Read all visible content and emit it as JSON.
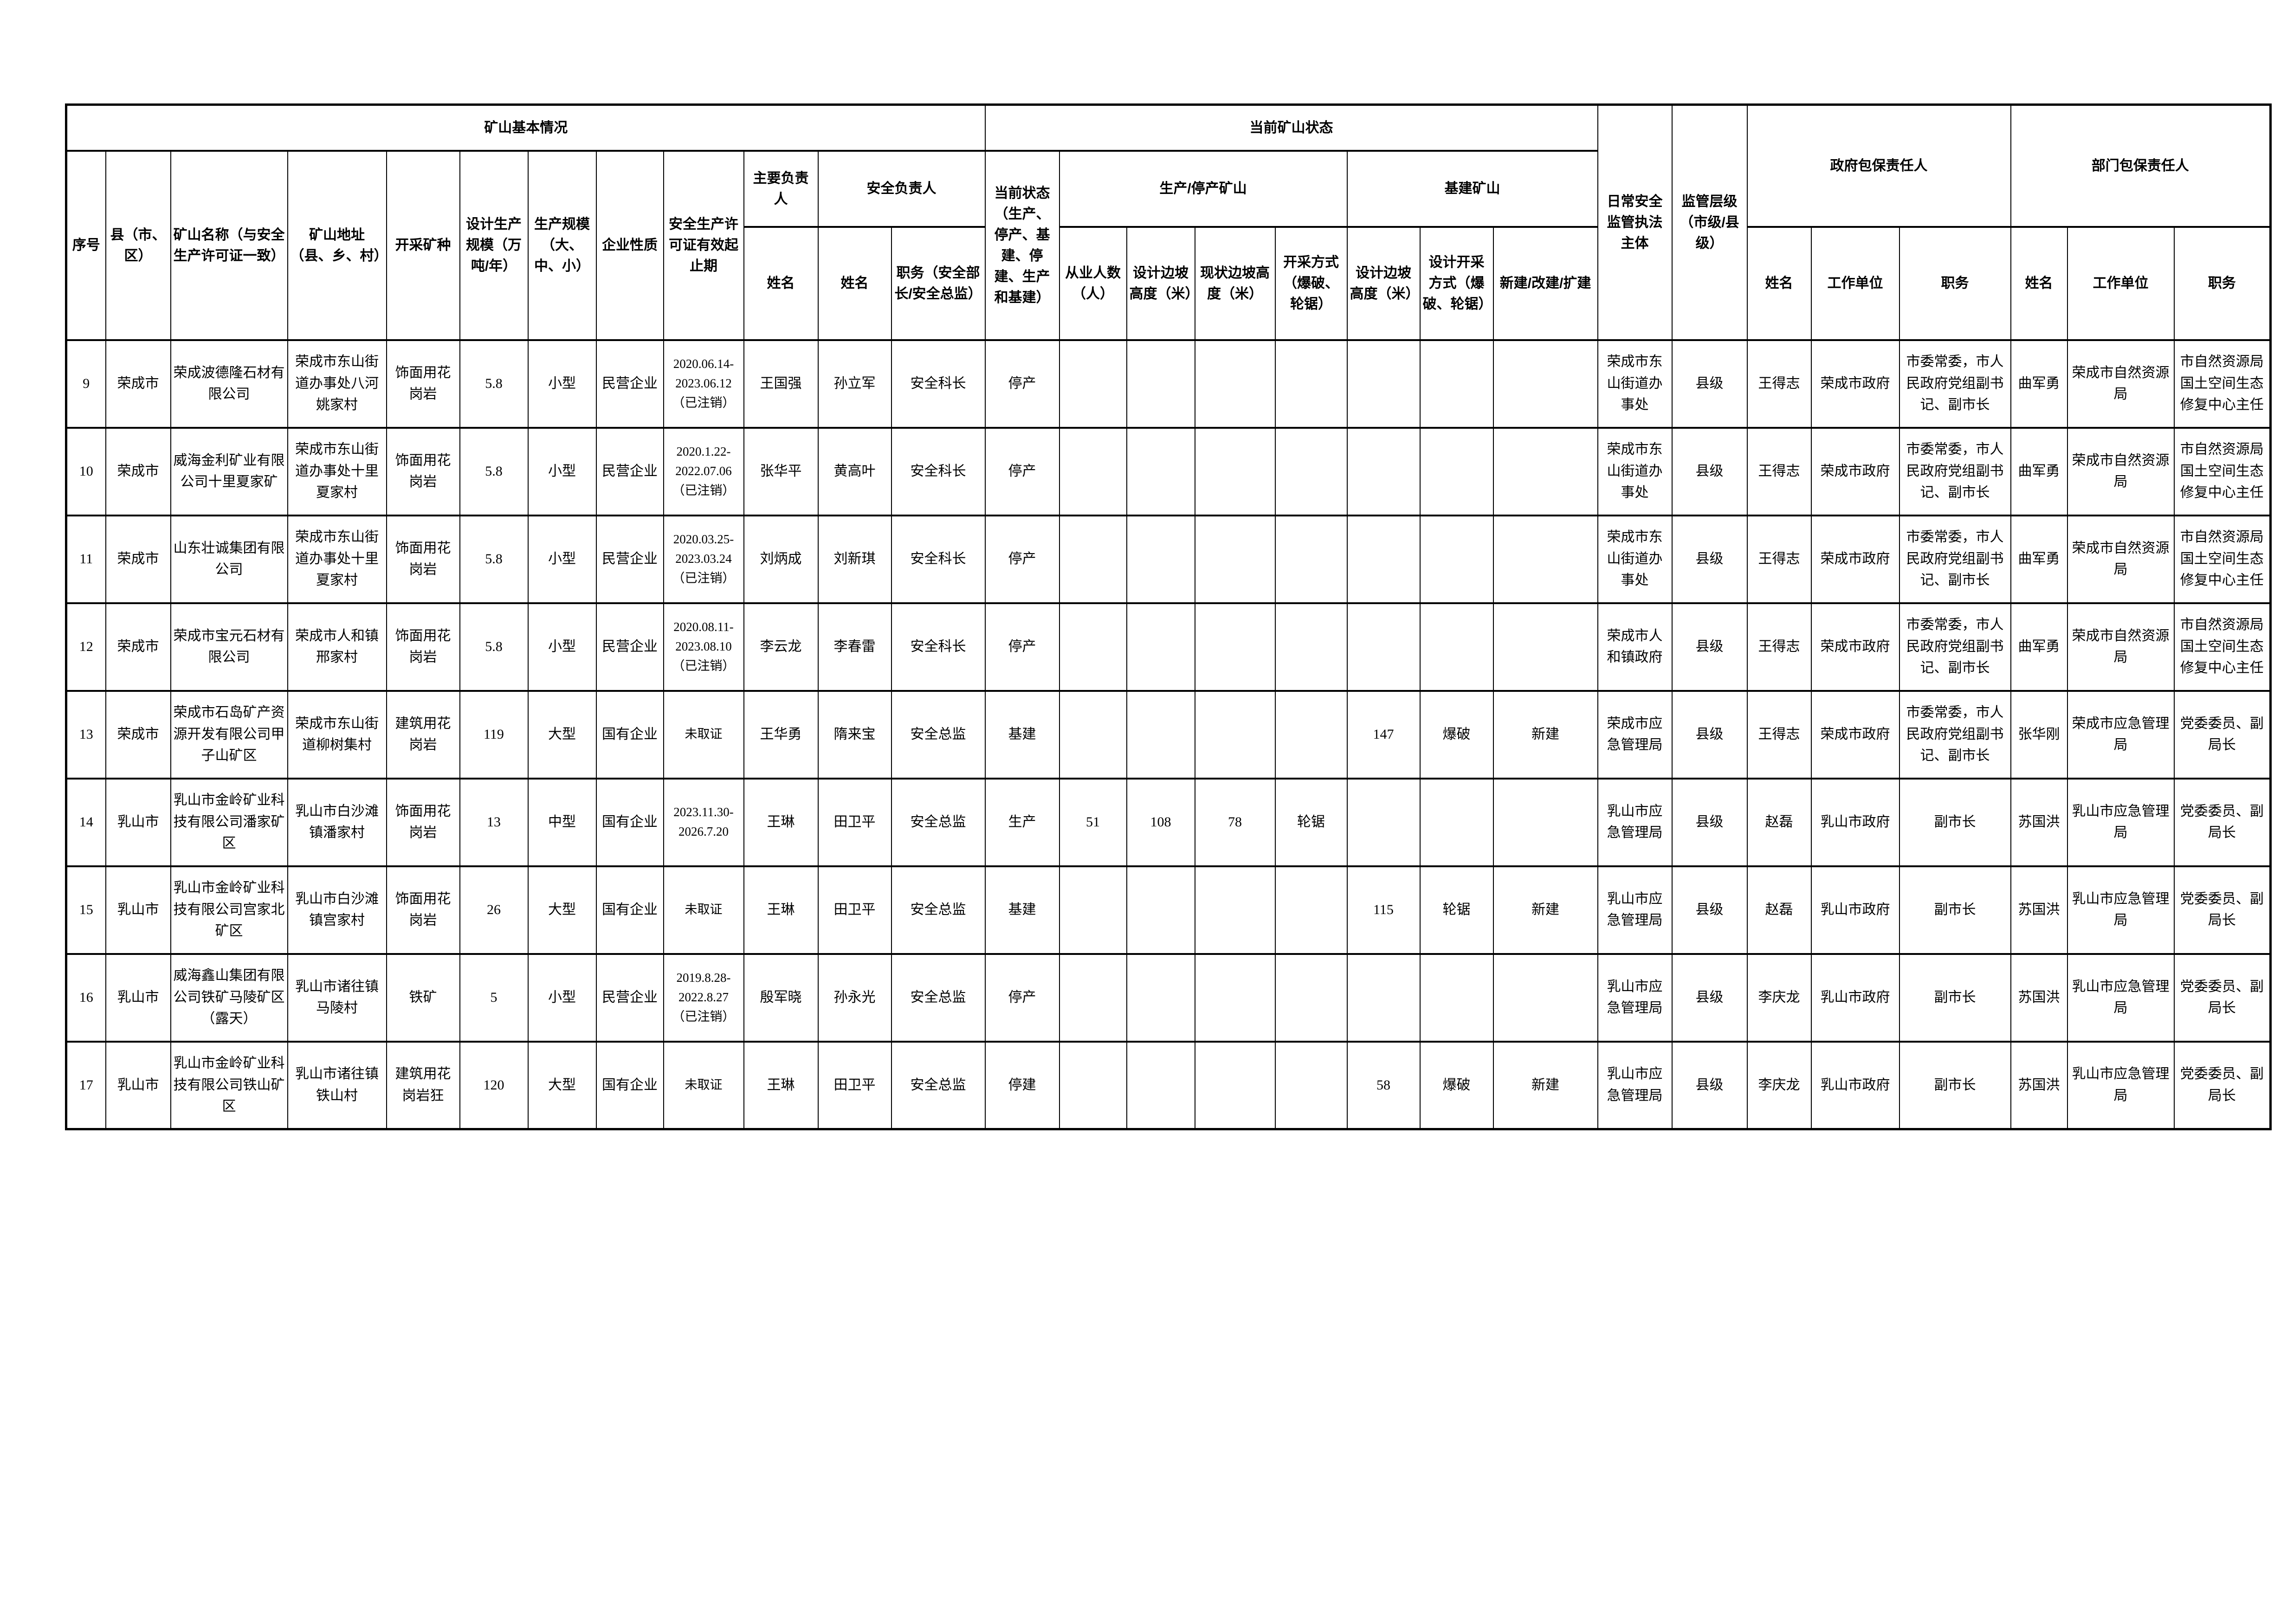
{
  "table": {
    "headers": {
      "group_basic": "矿山基本情况",
      "group_status": "当前矿山状态",
      "col_daily_supervision": "日常安全监管执法主体",
      "col_supervision_level": "监管层级（市级/县级）",
      "group_gov": "政府包保责任人",
      "group_dept": "部门包保责任人",
      "col_seq": "序号",
      "col_county": "县（市、区）",
      "col_mine_name": "矿山名称（与安全生产许可证一致）",
      "col_mine_address": "矿山地址（县、乡、村）",
      "col_mineral": "开采矿种",
      "col_design_capacity": "设计生产规模（万吨/年）",
      "col_scale": "生产规模（大、中、小）",
      "col_nature": "企业性质",
      "col_license": "安全生产许可证有效起止期",
      "col_main_principal": "主要负责人",
      "group_safety_principal": "安全负责人",
      "col_current_state": "当前状态（生产、停产、基建、停建、生产和基建）",
      "group_prod_stop": "生产/停产矿山",
      "group_construction": "基建矿山",
      "col_name": "姓名",
      "col_duty_full": "职务（安全部长/安全总监）",
      "col_workers": "从业人数（人）",
      "col_design_slope": "设计边坡高度（米）",
      "col_current_slope": "现状边坡高度（米）",
      "col_mining_method": "开采方式（爆破、轮锯）",
      "col_jj_design_slope": "设计边坡高度（米）",
      "col_jj_design_method": "设计开采方式（爆破、轮锯）",
      "col_new_build": "新建/改建/扩建",
      "col_work_unit": "工作单位",
      "col_duty": "职务"
    },
    "rows": [
      [
        "9",
        "荣成市",
        "荣成波德隆石材有限公司",
        "荣成市东山街道办事处八河姚家村",
        "饰面用花岗岩",
        "5.8",
        "小型",
        "民营企业",
        "2020.06.14-\n2023.06.12\n（已注销）",
        "王国强",
        "孙立军",
        "安全科长",
        "停产",
        "",
        "",
        "",
        "",
        "",
        "",
        "",
        "荣成市东山街道办事处",
        "县级",
        "王得志",
        "荣成市政府",
        "市委常委，市人民政府党组副书记、副市长",
        "曲军勇",
        "荣成市自然资源局",
        "市自然资源局国土空间生态修复中心主任"
      ],
      [
        "10",
        "荣成市",
        "威海金利矿业有限公司十里夏家矿",
        "荣成市东山街道办事处十里夏家村",
        "饰面用花岗岩",
        "5.8",
        "小型",
        "民营企业",
        "2020.1.22-\n2022.07.06\n（已注销）",
        "张华平",
        "黄高叶",
        "安全科长",
        "停产",
        "",
        "",
        "",
        "",
        "",
        "",
        "",
        "荣成市东山街道办事处",
        "县级",
        "王得志",
        "荣成市政府",
        "市委常委，市人民政府党组副书记、副市长",
        "曲军勇",
        "荣成市自然资源局",
        "市自然资源局国土空间生态修复中心主任"
      ],
      [
        "11",
        "荣成市",
        "山东壮诚集团有限公司",
        "荣成市东山街道办事处十里夏家村",
        "饰面用花岗岩",
        "5.8",
        "小型",
        "民营企业",
        "2020.03.25-\n2023.03.24\n（已注销）",
        "刘炳成",
        "刘新琪",
        "安全科长",
        "停产",
        "",
        "",
        "",
        "",
        "",
        "",
        "",
        "荣成市东山街道办事处",
        "县级",
        "王得志",
        "荣成市政府",
        "市委常委，市人民政府党组副书记、副市长",
        "曲军勇",
        "荣成市自然资源局",
        "市自然资源局国土空间生态修复中心主任"
      ],
      [
        "12",
        "荣成市",
        "荣成市宝元石材有限公司",
        "荣成市人和镇邢家村",
        "饰面用花岗岩",
        "5.8",
        "小型",
        "民营企业",
        "2020.08.11-\n2023.08.10\n（已注销）",
        "李云龙",
        "李春雷",
        "安全科长",
        "停产",
        "",
        "",
        "",
        "",
        "",
        "",
        "",
        "荣成市人和镇政府",
        "县级",
        "王得志",
        "荣成市政府",
        "市委常委，市人民政府党组副书记、副市长",
        "曲军勇",
        "荣成市自然资源局",
        "市自然资源局国土空间生态修复中心主任"
      ],
      [
        "13",
        "荣成市",
        "荣成市石岛矿产资源开发有限公司甲子山矿区",
        "荣成市东山街道柳树集村",
        "建筑用花岗岩",
        "119",
        "大型",
        "国有企业",
        "未取证",
        "王华勇",
        "隋来宝",
        "安全总监",
        "基建",
        "",
        "",
        "",
        "",
        "147",
        "爆破",
        "新建",
        "荣成市应急管理局",
        "县级",
        "王得志",
        "荣成市政府",
        "市委常委，市人民政府党组副书记、副市长",
        "张华刚",
        "荣成市应急管理局",
        "党委委员、副局长"
      ],
      [
        "14",
        "乳山市",
        "乳山市金岭矿业科技有限公司潘家矿区",
        "乳山市白沙滩镇潘家村",
        "饰面用花岗岩",
        "13",
        "中型",
        "国有企业",
        "2023.11.30-\n2026.7.20",
        "王琳",
        "田卫平",
        "安全总监",
        "生产",
        "51",
        "108",
        "78",
        "轮锯",
        "",
        "",
        "",
        "乳山市应急管理局",
        "县级",
        "赵磊",
        "乳山市政府",
        "副市长",
        "苏国洪",
        "乳山市应急管理局",
        "党委委员、副局长"
      ],
      [
        "15",
        "乳山市",
        "乳山市金岭矿业科技有限公司宫家北矿区",
        "乳山市白沙滩镇宫家村",
        "饰面用花岗岩",
        "26",
        "大型",
        "国有企业",
        "未取证",
        "王琳",
        "田卫平",
        "安全总监",
        "基建",
        "",
        "",
        "",
        "",
        "115",
        "轮锯",
        "新建",
        "乳山市应急管理局",
        "县级",
        "赵磊",
        "乳山市政府",
        "副市长",
        "苏国洪",
        "乳山市应急管理局",
        "党委委员、副局长"
      ],
      [
        "16",
        "乳山市",
        "威海鑫山集团有限公司铁矿马陵矿区（露天）",
        "乳山市诸往镇马陵村",
        "铁矿",
        "5",
        "小型",
        "民营企业",
        "2019.8.28-\n2022.8.27\n（已注销）",
        "殷军晓",
        "孙永光",
        "安全总监",
        "停产",
        "",
        "",
        "",
        "",
        "",
        "",
        "",
        "乳山市应急管理局",
        "县级",
        "李庆龙",
        "乳山市政府",
        "副市长",
        "苏国洪",
        "乳山市应急管理局",
        "党委委员、副局长"
      ],
      [
        "17",
        "乳山市",
        "乳山市金岭矿业科技有限公司铁山矿区",
        "乳山市诸往镇铁山村",
        "建筑用花岗岩狂",
        "120",
        "大型",
        "国有企业",
        "未取证",
        "王琳",
        "田卫平",
        "安全总监",
        "停建",
        "",
        "",
        "",
        "",
        "58",
        "爆破",
        "新建",
        "乳山市应急管理局",
        "县级",
        "李庆龙",
        "乳山市政府",
        "副市长",
        "苏国洪",
        "乳山市应急管理局",
        "党委委员、副局长"
      ]
    ]
  }
}
